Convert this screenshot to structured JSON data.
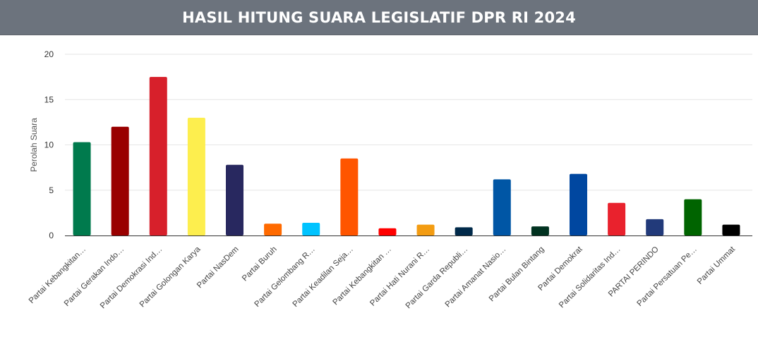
{
  "header": {
    "title": "HASIL HITUNG SUARA LEGISLATIF DPR RI 2024"
  },
  "chart_data": {
    "type": "bar",
    "title": "HASIL HITUNG SUARA LEGISLATIF DPR RI 2024",
    "ylabel": "Perolah Suara",
    "xlabel": "",
    "ylim": [
      0,
      20
    ],
    "yticks": [
      0,
      5,
      10,
      15,
      20
    ],
    "grid": true,
    "categories": [
      "Partai Kebangkitan…",
      "Partai Gerakan Indo…",
      "Partai Demokrasi Ind…",
      "Partai Golongan Karya",
      "Partai NasDem",
      "Partai Buruh",
      "Partai Gelombang R…",
      "Partai Keadilan Seja…",
      "Partai Kebangkitan …",
      "Partai Hati Nurani R…",
      "Partai Garda Republi…",
      "Partai Amanat Nasio…",
      "Partai Bulan Bintang",
      "Partai Demokrat",
      "Partai Solidaritas Ind…",
      "PARTAI PERINDO",
      "Partai Persatuan Pe…",
      "Partai Ummat"
    ],
    "values": [
      10.3,
      12.0,
      17.5,
      13.0,
      7.8,
      1.3,
      1.4,
      8.5,
      0.8,
      1.2,
      0.9,
      6.2,
      1.0,
      6.8,
      3.6,
      1.8,
      4.0,
      1.2
    ],
    "colors": [
      "#007a4d",
      "#990000",
      "#d7202b",
      "#fdee4e",
      "#28285f",
      "#ff6a00",
      "#00c3ff",
      "#ff5500",
      "#ff0000",
      "#f39c12",
      "#012a4a",
      "#0056a5",
      "#013220",
      "#0047a0",
      "#e9222d",
      "#223a7a",
      "#006400",
      "#000000"
    ]
  }
}
